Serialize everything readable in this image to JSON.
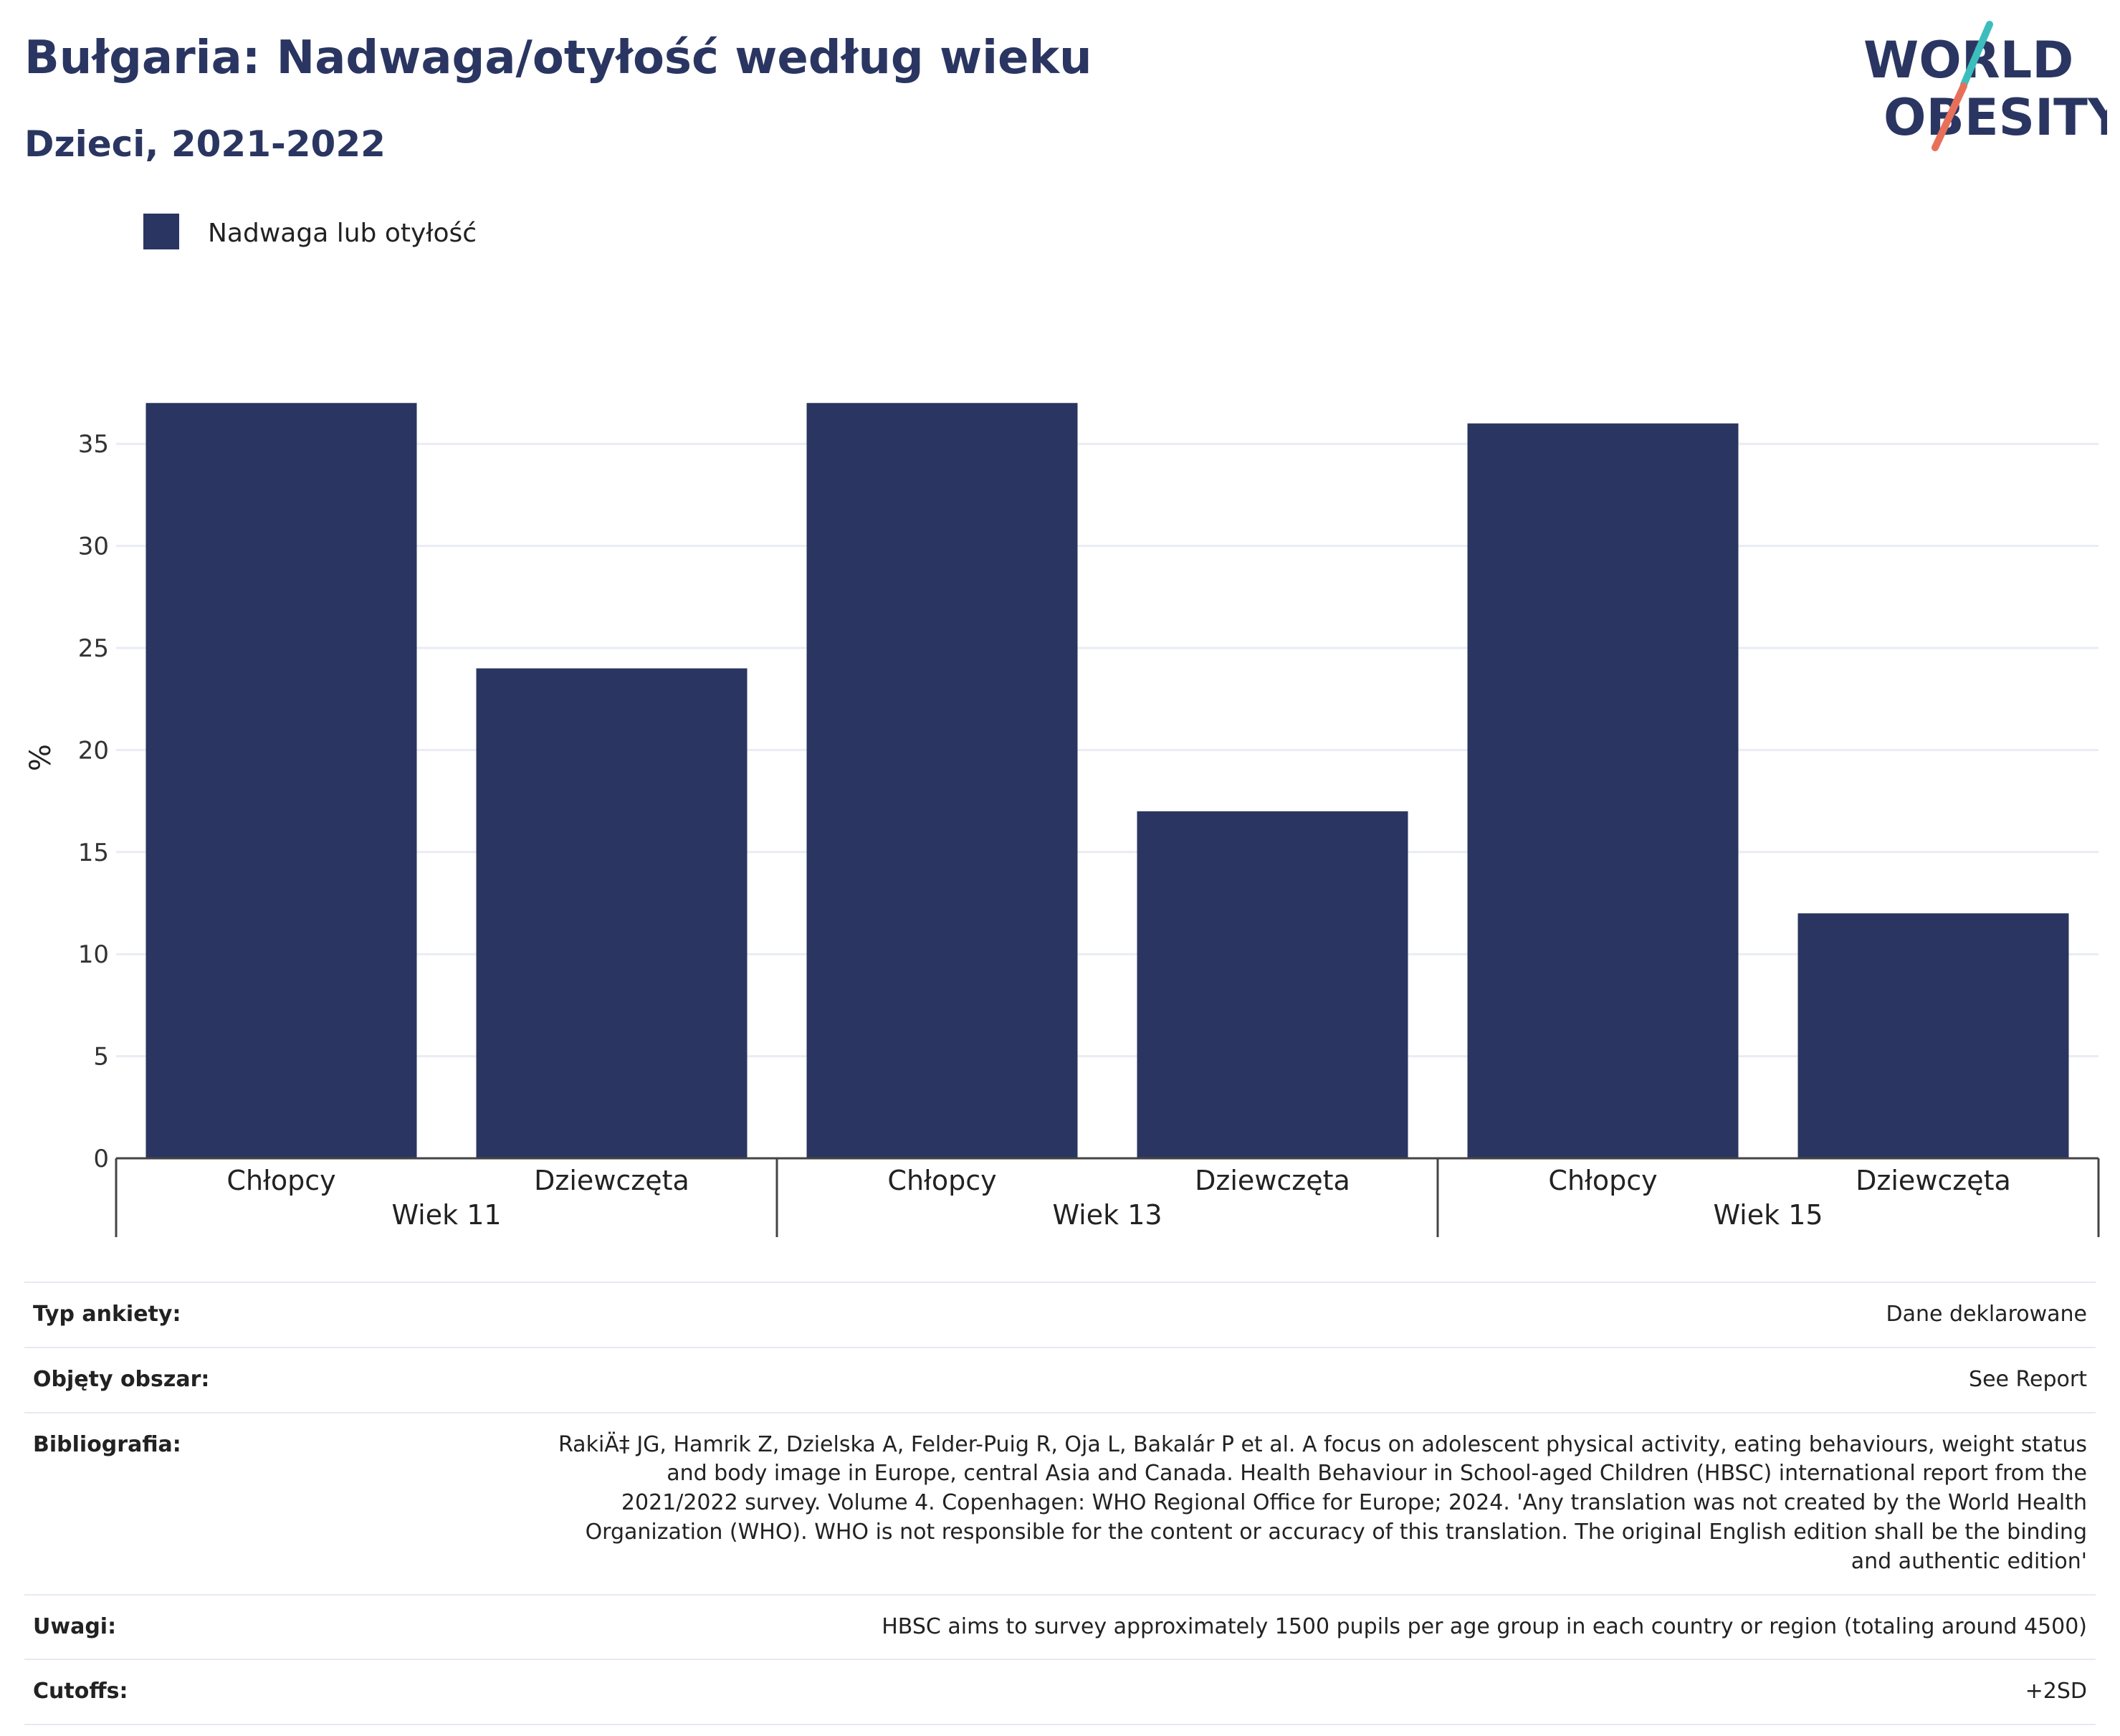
{
  "header": {
    "title": "Bułgaria: Nadwaga/otyłość według wieku",
    "subtitle": "Dzieci, 2021-2022"
  },
  "logo": {
    "line1": "WORLD",
    "line2": "OBESITY",
    "colors": {
      "text": "#2a3661",
      "slash_top": "#3dbdbd",
      "slash_bottom": "#e8705a"
    }
  },
  "chart_data": {
    "type": "bar",
    "legend": {
      "label": "Nadwaga lub otyłość",
      "position": "top-left",
      "color": "#2a3661"
    },
    "ylabel": "%",
    "ylim": [
      0,
      37.5
    ],
    "yticks": [
      0,
      5,
      10,
      15,
      20,
      25,
      30,
      35
    ],
    "grid": true,
    "groups": [
      {
        "label": "Wiek 11",
        "categories": [
          "Chłopcy",
          "Dziewczęta"
        ],
        "values": [
          37,
          24
        ]
      },
      {
        "label": "Wiek 13",
        "categories": [
          "Chłopcy",
          "Dziewczęta"
        ],
        "values": [
          37,
          17
        ]
      },
      {
        "label": "Wiek 15",
        "categories": [
          "Chłopcy",
          "Dziewczęta"
        ],
        "values": [
          36,
          12
        ]
      }
    ],
    "bar_color": "#2a3661"
  },
  "info": [
    {
      "key": "Typ ankiety:",
      "value": "Dane deklarowane"
    },
    {
      "key": "Objęty obszar:",
      "value": "See Report"
    },
    {
      "key": "Bibliografia:",
      "value": "RakiÄ‡ JG, Hamrik Z, Dzielska A, Felder-Puig R, Oja L, Bakalár P et al. A focus on adolescent physical activity, eating behaviours, weight status and body image in Europe, central Asia and Canada. Health Behaviour in School-aged Children (HBSC) international report from the 2021/2022 survey. Volume 4. Copenhagen: WHO Regional Office for Europe; 2024. 'Any translation was not created by the World Health Organization (WHO). WHO is not responsible for the content or accuracy of this translation. The original English edition shall be the binding and authentic edition'"
    },
    {
      "key": "Uwagi:",
      "value": "HBSC aims to survey approximately 1500 pupils per age group in each country or region (totaling around 4500)"
    },
    {
      "key": "Cutoffs:",
      "value": "+2SD"
    }
  ]
}
